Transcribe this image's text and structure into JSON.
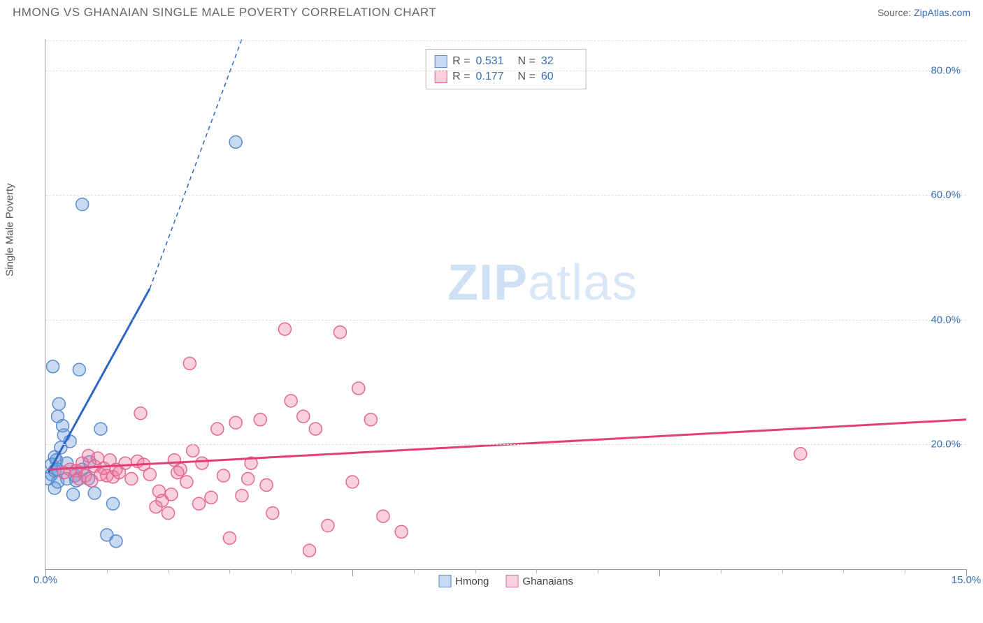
{
  "title": "HMONG VS GHANAIAN SINGLE MALE POVERTY CORRELATION CHART",
  "source_label": "Source:",
  "source_site": "ZipAtlas.com",
  "ylabel": "Single Male Poverty",
  "watermark_a": "ZIP",
  "watermark_b": "atlas",
  "chart": {
    "type": "scatter",
    "xlim": [
      0,
      15
    ],
    "ylim": [
      0,
      85
    ],
    "xticks_major": [
      0,
      5,
      10,
      15
    ],
    "xticks_minor": [
      1,
      2,
      3,
      4,
      6,
      7,
      8,
      9,
      11,
      12,
      13,
      14
    ],
    "xtick_labels": {
      "0": "0.0%",
      "15": "15.0%"
    },
    "yticks": [
      20,
      40,
      60,
      80
    ],
    "ytick_labels": {
      "20": "20.0%",
      "40": "40.0%",
      "60": "60.0%",
      "80": "80.0%"
    },
    "grid_color": "#dddddd",
    "background_color": "#ffffff",
    "axis_color": "#999999",
    "tick_label_color": "#3b6fb6",
    "marker_radius": 9,
    "marker_stroke_width": 1.5,
    "trendline_width": 3,
    "series": [
      {
        "name": "Hmong",
        "fill": "rgba(96,150,214,0.35)",
        "stroke": "#5a8ccf",
        "line_color": "#2e66c4",
        "R_label": "R =",
        "R": "0.531",
        "N_label": "N =",
        "N": "32",
        "trend": {
          "x1": 0.05,
          "y1": 15.5,
          "x2_solid": 1.7,
          "y2_solid": 45,
          "x2_dash": 3.2,
          "y2_dash": 85
        },
        "points": [
          [
            0.05,
            14.5
          ],
          [
            0.1,
            15.2
          ],
          [
            0.1,
            16.8
          ],
          [
            0.15,
            18
          ],
          [
            0.15,
            13
          ],
          [
            0.15,
            15.8
          ],
          [
            0.2,
            24.5
          ],
          [
            0.2,
            14
          ],
          [
            0.2,
            16
          ],
          [
            0.22,
            26.5
          ],
          [
            0.25,
            19.5
          ],
          [
            0.28,
            23
          ],
          [
            0.3,
            21.5
          ],
          [
            0.35,
            17
          ],
          [
            0.35,
            14.5
          ],
          [
            0.4,
            20.5
          ],
          [
            0.45,
            12
          ],
          [
            0.48,
            15
          ],
          [
            0.5,
            14.2
          ],
          [
            0.55,
            32
          ],
          [
            0.6,
            16
          ],
          [
            0.7,
            14.5
          ],
          [
            0.72,
            17.2
          ],
          [
            0.8,
            12.2
          ],
          [
            0.9,
            22.5
          ],
          [
            1.0,
            5.5
          ],
          [
            1.1,
            10.5
          ],
          [
            1.15,
            4.5
          ],
          [
            0.6,
            58.5
          ],
          [
            0.12,
            32.5
          ],
          [
            3.1,
            68.5
          ],
          [
            0.18,
            17.5
          ]
        ]
      },
      {
        "name": "Ghanaians",
        "fill": "rgba(238,120,160,0.35)",
        "stroke": "#e46893",
        "line_color": "#e23f78",
        "R_label": "R =",
        "R": "0.177",
        "N_label": "N =",
        "N": "60",
        "trend": {
          "x1": 0.05,
          "y1": 16,
          "x2_solid": 15,
          "y2_solid": 24,
          "x2_dash": 15,
          "y2_dash": 24
        },
        "points": [
          [
            0.3,
            15.5
          ],
          [
            0.4,
            16
          ],
          [
            0.5,
            15.8
          ],
          [
            0.55,
            14.5
          ],
          [
            0.6,
            17
          ],
          [
            0.65,
            15
          ],
          [
            0.7,
            18.2
          ],
          [
            0.75,
            14.2
          ],
          [
            0.8,
            16.5
          ],
          [
            0.85,
            17.8
          ],
          [
            0.9,
            15.2
          ],
          [
            0.95,
            16.2
          ],
          [
            1.0,
            15
          ],
          [
            1.05,
            17.5
          ],
          [
            1.1,
            14.8
          ],
          [
            1.15,
            16
          ],
          [
            1.2,
            15.5
          ],
          [
            1.3,
            17
          ],
          [
            1.4,
            14.5
          ],
          [
            1.5,
            17.3
          ],
          [
            1.55,
            25
          ],
          [
            1.6,
            16.8
          ],
          [
            1.7,
            15.2
          ],
          [
            1.8,
            10
          ],
          [
            1.85,
            12.5
          ],
          [
            1.9,
            11
          ],
          [
            2.0,
            9
          ],
          [
            2.05,
            12
          ],
          [
            2.1,
            17.5
          ],
          [
            2.2,
            16
          ],
          [
            2.3,
            14
          ],
          [
            2.35,
            33
          ],
          [
            2.4,
            19
          ],
          [
            2.5,
            10.5
          ],
          [
            2.55,
            17
          ],
          [
            2.7,
            11.5
          ],
          [
            2.8,
            22.5
          ],
          [
            2.9,
            15
          ],
          [
            3.0,
            5
          ],
          [
            3.1,
            23.5
          ],
          [
            3.2,
            11.8
          ],
          [
            3.3,
            14.5
          ],
          [
            3.35,
            17
          ],
          [
            3.5,
            24
          ],
          [
            3.6,
            13.5
          ],
          [
            3.7,
            9
          ],
          [
            3.9,
            38.5
          ],
          [
            4.0,
            27
          ],
          [
            4.2,
            24.5
          ],
          [
            4.3,
            3
          ],
          [
            4.4,
            22.5
          ],
          [
            4.6,
            7
          ],
          [
            4.8,
            38
          ],
          [
            5.0,
            14
          ],
          [
            5.1,
            29
          ],
          [
            5.3,
            24
          ],
          [
            5.5,
            8.5
          ],
          [
            5.8,
            6
          ],
          [
            12.3,
            18.5
          ],
          [
            2.15,
            15.5
          ]
        ]
      }
    ]
  }
}
